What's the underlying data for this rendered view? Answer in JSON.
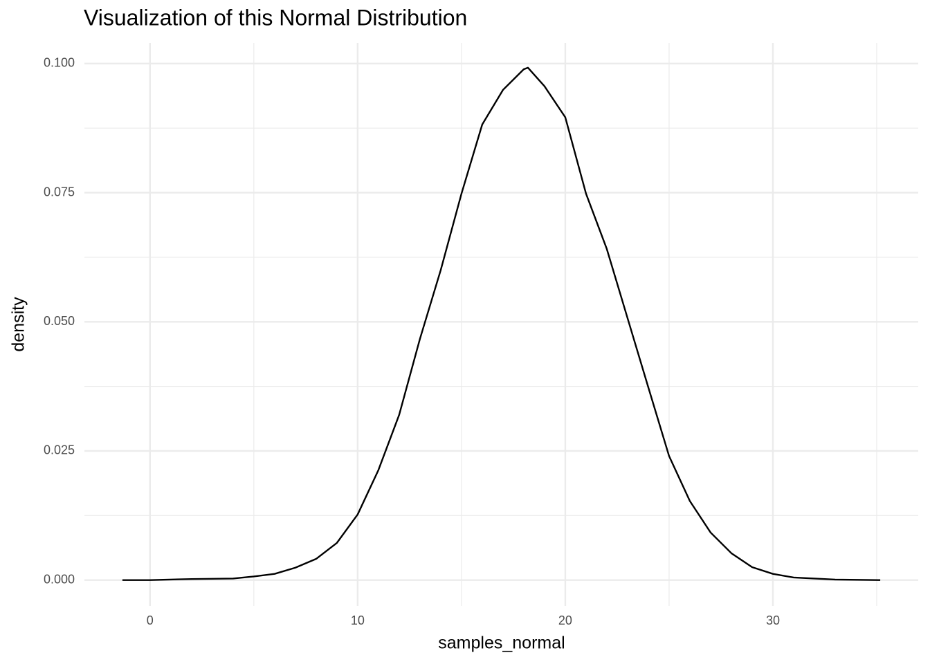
{
  "chart_data": {
    "type": "line",
    "title": "Visualization of this Normal Distribution",
    "xlabel": "samples_normal",
    "ylabel": "density",
    "x": [
      -1.33,
      0,
      2,
      4,
      5,
      6,
      7,
      8,
      9,
      10,
      11,
      12,
      13,
      14,
      15,
      16,
      17,
      18,
      18.2,
      19,
      20,
      21,
      22,
      23,
      24,
      25,
      26,
      27,
      28,
      29,
      30,
      31,
      32,
      33,
      35.17
    ],
    "series": [
      {
        "name": "density",
        "color": "#000000",
        "values": [
          0,
          0,
          0.0002,
          0.0003,
          0.0007,
          0.0012,
          0.0024,
          0.0041,
          0.0072,
          0.0127,
          0.0213,
          0.032,
          0.0467,
          0.06,
          0.0748,
          0.0882,
          0.0949,
          0.0989,
          0.0992,
          0.0956,
          0.0896,
          0.0748,
          0.0641,
          0.0507,
          0.0373,
          0.024,
          0.0153,
          0.0092,
          0.0052,
          0.0025,
          0.0012,
          0.0005,
          0.0003,
          0.0001,
          0
        ]
      }
    ],
    "xlim": [
      -3.16,
      37.0
    ],
    "xticks": [
      0,
      10,
      20,
      30
    ],
    "minor_xticks": [
      5,
      15,
      25,
      35
    ],
    "ylim": [
      -0.005,
      0.104
    ],
    "yticks": [
      {
        "value": 0,
        "label": "0.000"
      },
      {
        "value": 0.025,
        "label": "0.025"
      },
      {
        "value": 0.05,
        "label": "0.050"
      },
      {
        "value": 0.075,
        "label": "0.075"
      },
      {
        "value": 0.1,
        "label": "0.100"
      }
    ],
    "minor_yticks": [
      0.0125,
      0.0375,
      0.0625,
      0.0875
    ],
    "grid": true
  }
}
